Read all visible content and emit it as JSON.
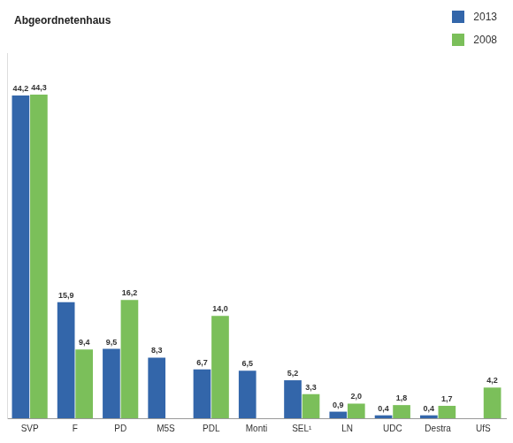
{
  "chart_data": {
    "type": "bar",
    "title": "Abgeordnetenhaus",
    "categories": [
      "SVP",
      "F",
      "PD",
      "M5S",
      "PDL",
      "Monti",
      "SEL¹",
      "LN",
      "UDC",
      "Destra",
      "UfS"
    ],
    "series": [
      {
        "name": "2013",
        "color": "#3366aa",
        "values": [
          44.2,
          15.9,
          9.5,
          8.3,
          6.7,
          6.5,
          5.2,
          0.9,
          0.4,
          0.4,
          null
        ],
        "value_labels": [
          "44,2",
          "15,9",
          "9,5",
          "8,3",
          "6,7",
          "6,5",
          "5,2",
          "0,9",
          "0,4",
          "0,4",
          null
        ]
      },
      {
        "name": "2008",
        "color": "#7bbf5a",
        "values": [
          44.3,
          9.4,
          16.2,
          null,
          14.0,
          null,
          3.3,
          2.0,
          1.8,
          1.7,
          4.2
        ],
        "value_labels": [
          "44,3",
          "9,4",
          "16,2",
          null,
          "14,0",
          null,
          "3,3",
          "2,0",
          "1,8",
          "1,7",
          "4,2"
        ]
      }
    ],
    "ylim": [
      0,
      50
    ],
    "grid": false,
    "legend": "top-right",
    "data_labels": true,
    "tick_labels": "x"
  }
}
